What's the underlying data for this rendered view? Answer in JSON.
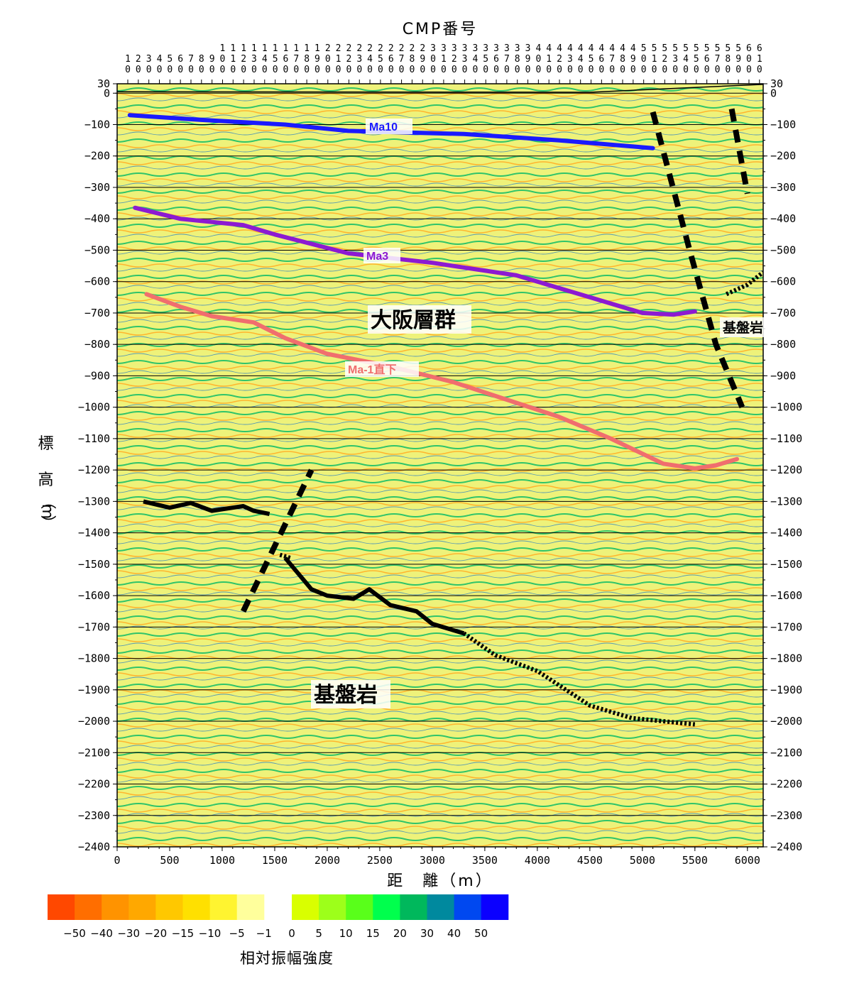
{
  "figure": {
    "top_title": "CMP番号",
    "x_title": "距　離（m）",
    "y_title_chars": [
      "標",
      "高",
      "（",
      "m",
      "）"
    ],
    "labels": {
      "ma10": "Ma10",
      "ma3": "Ma3",
      "ma_minus1": "Ma-1直下",
      "osaka_group": "大阪層群",
      "basement_lower": "基盤岩",
      "basement_right": "基盤岩"
    },
    "colorbar_title": "相対振幅強度"
  },
  "chart_data": {
    "type": "heatmap",
    "description_axes": {
      "x": {
        "label": "距　離（m）",
        "range": [
          0,
          6150
        ],
        "ticks": [
          0,
          500,
          1000,
          1500,
          2000,
          2500,
          3000,
          3500,
          4000,
          4500,
          5000,
          5500,
          6000
        ]
      },
      "y": {
        "label": "標高（m）",
        "range": [
          -2400,
          30
        ],
        "ticks": [
          30,
          0,
          -100,
          -200,
          -300,
          -400,
          -500,
          -600,
          -700,
          -800,
          -900,
          -1000,
          -1100,
          -1200,
          -1300,
          -1400,
          -1500,
          -1600,
          -1700,
          -1800,
          -1900,
          -2000,
          -2100,
          -2200,
          -2300,
          -2400
        ]
      },
      "top": {
        "label": "CMP番号",
        "ticks": [
          "10",
          "20",
          "30",
          "40",
          "50",
          "60",
          "70",
          "80",
          "90",
          "100",
          "110",
          "120",
          "130",
          "140",
          "150",
          "160",
          "170",
          "180",
          "190",
          "200",
          "210",
          "220",
          "230",
          "240",
          "250",
          "260",
          "270",
          "280",
          "290",
          "300",
          "310",
          "320",
          "330",
          "340",
          "350",
          "360",
          "370",
          "380",
          "390",
          "400",
          "410",
          "420",
          "430",
          "440",
          "450",
          "460",
          "470",
          "480",
          "490",
          "500",
          "510",
          "520",
          "530",
          "540",
          "550",
          "560",
          "570",
          "580",
          "590",
          "600",
          "610"
        ]
      }
    },
    "grid": true,
    "horizons": [
      {
        "name": "Ma10",
        "color": "#1a1aff",
        "points": [
          [
            120,
            -70
          ],
          [
            800,
            -85
          ],
          [
            1600,
            -100
          ],
          [
            2200,
            -120
          ],
          [
            3300,
            -130
          ],
          [
            4200,
            -150
          ],
          [
            5100,
            -175
          ]
        ]
      },
      {
        "name": "Ma3",
        "color": "#8c1ad1",
        "points": [
          [
            170,
            -365
          ],
          [
            600,
            -400
          ],
          [
            1200,
            -420
          ],
          [
            1500,
            -450
          ],
          [
            2200,
            -510
          ],
          [
            3000,
            -540
          ],
          [
            3800,
            -580
          ],
          [
            4500,
            -650
          ],
          [
            5000,
            -700
          ],
          [
            5300,
            -705
          ],
          [
            5500,
            -695
          ]
        ]
      },
      {
        "name": "Ma-1直下",
        "color": "#f06e6e",
        "points": [
          [
            280,
            -640
          ],
          [
            600,
            -680
          ],
          [
            900,
            -710
          ],
          [
            1300,
            -730
          ],
          [
            1600,
            -780
          ],
          [
            2000,
            -830
          ],
          [
            2600,
            -870
          ],
          [
            3200,
            -920
          ],
          [
            4200,
            -1030
          ],
          [
            4700,
            -1100
          ],
          [
            5200,
            -1180
          ],
          [
            5500,
            -1195
          ],
          [
            5700,
            -1185
          ],
          [
            5900,
            -1165
          ]
        ]
      }
    ],
    "basement_top_solid": [
      {
        "points": [
          [
            250,
            -1300
          ],
          [
            500,
            -1320
          ],
          [
            700,
            -1305
          ],
          [
            900,
            -1330
          ],
          [
            1100,
            -1320
          ],
          [
            1200,
            -1315
          ],
          [
            1300,
            -1330
          ],
          [
            1450,
            -1340
          ]
        ]
      },
      {
        "points": [
          [
            1600,
            -1480
          ],
          [
            1750,
            -1540
          ],
          [
            1850,
            -1580
          ],
          [
            2000,
            -1600
          ],
          [
            2250,
            -1610
          ],
          [
            2400,
            -1580
          ],
          [
            2600,
            -1630
          ],
          [
            2850,
            -1650
          ],
          [
            3000,
            -1690
          ],
          [
            3300,
            -1720
          ]
        ]
      }
    ],
    "basement_top_dotted": [
      {
        "points": [
          [
            1550,
            -1470
          ],
          [
            1650,
            -1480
          ]
        ]
      },
      {
        "points": [
          [
            3300,
            -1720
          ],
          [
            3600,
            -1790
          ],
          [
            4000,
            -1840
          ],
          [
            4500,
            -1950
          ],
          [
            4900,
            -1990
          ],
          [
            5500,
            -2010
          ]
        ]
      },
      {
        "points": [
          [
            5800,
            -640
          ],
          [
            6000,
            -610
          ],
          [
            6150,
            -570
          ]
        ]
      }
    ],
    "faults_dashed": [
      {
        "points": [
          [
            1200,
            -1650
          ],
          [
            1850,
            -1200
          ]
        ]
      },
      {
        "points": [
          [
            5100,
            -60
          ],
          [
            5450,
            -500
          ],
          [
            5700,
            -800
          ],
          [
            5950,
            -1000
          ]
        ]
      },
      {
        "points": [
          [
            5850,
            -50
          ],
          [
            6000,
            -320
          ]
        ]
      }
    ],
    "colorbar": {
      "title": "相対振幅強度",
      "negative_labels": [
        "-50",
        "-40",
        "-30",
        "-20",
        "-15",
        "-10",
        "-5",
        "-1"
      ],
      "positive_labels": [
        "0",
        "5",
        "10",
        "15",
        "20",
        "30",
        "40",
        "50"
      ],
      "negative_colors": [
        "#ff4800",
        "#ff6e00",
        "#ff9300",
        "#ffa800",
        "#ffc800",
        "#ffe000",
        "#fff430",
        "#ffff9c"
      ],
      "positive_colors": [
        "#d9ff00",
        "#9dff1a",
        "#59ff1a",
        "#00ff4d",
        "#00b85c",
        "#00899e",
        "#0048f0",
        "#0b00ff"
      ]
    }
  }
}
